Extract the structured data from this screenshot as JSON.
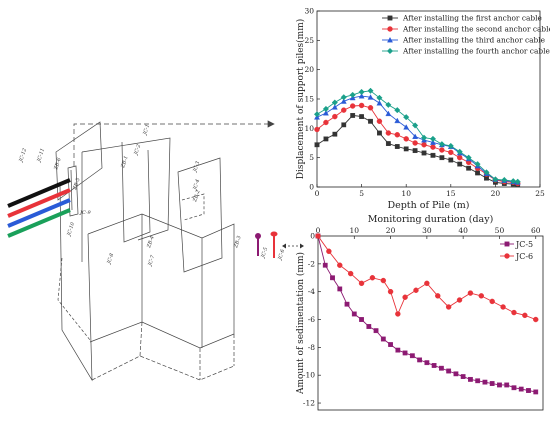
{
  "schematic": {
    "labels": {
      "jc1": "JC-1",
      "jc2": "JC-2",
      "zb1": "ZB-1",
      "jc3": "JC-3",
      "jc4": "JC-4",
      "zb2": "ZB-2",
      "jc12": "JC-12",
      "jc11": "JC-11",
      "zb6": "ZB-6",
      "zb5": "ZB-5",
      "jc9": "JC-9",
      "jc10": "JC-10",
      "zb4": "ZB-4",
      "jc7": "JC-7",
      "jc8": "JC-8",
      "zb3": "ZB-3",
      "jc5": "JC-5",
      "jc6": "JC-6"
    },
    "cable_colors": [
      "#111111",
      "#e8333a",
      "#2a5bd7",
      "#1aa05a"
    ]
  },
  "chart_data": [
    {
      "type": "line",
      "xlabel": "Depth of Pile (m)",
      "ylabel": "Displacement of support piles(mm)",
      "xlim": [
        0,
        25
      ],
      "ylim": [
        0,
        30
      ],
      "xticks": [
        "0",
        "5",
        "10",
        "15",
        "20",
        "25"
      ],
      "yticks": [
        "0",
        "5",
        "10",
        "15",
        "20",
        "25",
        "30"
      ],
      "legend_position": "top-right",
      "x": [
        0,
        1,
        2,
        3,
        4,
        5,
        6,
        7,
        8,
        9,
        10,
        11,
        12,
        13,
        14,
        15,
        16,
        17,
        18,
        19,
        20,
        21,
        22,
        22.5
      ],
      "series": [
        {
          "name": "After installing the first anchor cable",
          "color": "#333333",
          "marker": "square",
          "values": [
            7.2,
            8.2,
            9.0,
            10.6,
            12.2,
            12.0,
            11.2,
            9.2,
            7.4,
            6.9,
            6.5,
            6.2,
            5.8,
            5.4,
            5.0,
            4.6,
            3.9,
            3.2,
            2.4,
            1.5,
            0.8,
            0.6,
            0.5,
            0.4
          ]
        },
        {
          "name": "After installing the second anchor cable",
          "color": "#e8333a",
          "marker": "circle",
          "values": [
            9.8,
            11.0,
            12.0,
            13.1,
            13.8,
            13.9,
            13.5,
            11.2,
            9.2,
            8.9,
            8.2,
            7.5,
            7.2,
            6.8,
            6.3,
            5.9,
            5.0,
            4.2,
            3.2,
            2.2,
            1.2,
            0.9,
            0.8,
            0.6
          ]
        },
        {
          "name": "After installing the third anchor cable",
          "color": "#2a5bd7",
          "marker": "triangle",
          "values": [
            11.9,
            12.6,
            13.6,
            14.6,
            15.2,
            15.5,
            15.3,
            14.3,
            12.5,
            11.3,
            10.2,
            8.6,
            8.0,
            7.6,
            7.2,
            6.9,
            5.8,
            4.8,
            3.6,
            2.3,
            1.3,
            1.1,
            0.9,
            0.8
          ]
        },
        {
          "name": "After installing the fourth anchor cable",
          "color": "#1aa08a",
          "marker": "diamond",
          "values": [
            12.4,
            13.3,
            14.4,
            15.3,
            15.7,
            16.2,
            16.4,
            15.2,
            14.0,
            13.1,
            11.9,
            10.5,
            8.4,
            8.2,
            7.3,
            7.0,
            6.0,
            5.0,
            3.9,
            2.5,
            1.3,
            1.2,
            1.0,
            0.9
          ]
        }
      ]
    },
    {
      "type": "line",
      "xlabel": "Monitoring duration (day)",
      "ylabel": "Amount of sedimentation (mm)",
      "xlim": [
        0,
        62
      ],
      "ylim": [
        -12.5,
        0
      ],
      "xaxis_position": "top",
      "xticks": [
        "0",
        "10",
        "20",
        "30",
        "40",
        "50",
        "60"
      ],
      "yticks": [
        "0",
        "-2",
        "-4",
        "-6",
        "-8",
        "-10",
        "-12"
      ],
      "legend_position": "top-right",
      "series": [
        {
          "name": "JC-5",
          "color": "#8c1a72",
          "marker": "square",
          "x": [
            0,
            2,
            4,
            6,
            8,
            10,
            12,
            14,
            16,
            18,
            20,
            22,
            24,
            26,
            28,
            30,
            32,
            34,
            36,
            38,
            40,
            42,
            44,
            46,
            48,
            50,
            52,
            54,
            56,
            58,
            60
          ],
          "values": [
            0,
            -2.1,
            -3.0,
            -3.8,
            -4.9,
            -5.6,
            -6.0,
            -6.5,
            -6.8,
            -7.4,
            -7.8,
            -8.2,
            -8.4,
            -8.6,
            -8.9,
            -9.1,
            -9.3,
            -9.5,
            -9.7,
            -9.9,
            -10.1,
            -10.3,
            -10.4,
            -10.5,
            -10.6,
            -10.7,
            -10.7,
            -10.9,
            -11.0,
            -11.1,
            -11.2
          ]
        },
        {
          "name": "JC-6",
          "color": "#e8333a",
          "marker": "circle",
          "x": [
            0,
            3,
            6,
            9,
            12,
            15,
            18,
            20,
            22,
            24,
            27,
            30,
            33,
            36,
            39,
            42,
            45,
            48,
            51,
            54,
            57,
            60
          ],
          "values": [
            0,
            -1.1,
            -2.1,
            -2.7,
            -3.4,
            -3.0,
            -3.2,
            -4.0,
            -5.6,
            -4.4,
            -3.9,
            -3.4,
            -4.3,
            -5.1,
            -4.6,
            -4.1,
            -4.3,
            -4.7,
            -5.1,
            -5.5,
            -5.7,
            -6.0
          ]
        }
      ]
    }
  ]
}
